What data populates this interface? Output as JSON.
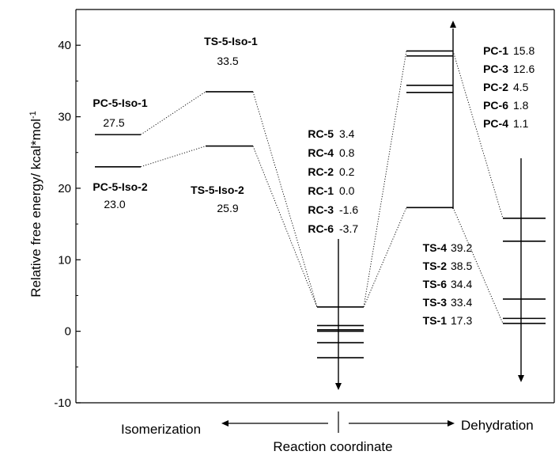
{
  "chart_data": {
    "type": "energy-level-diagram",
    "ylabel": "Relative free energy/ kcal*mol",
    "ylabel_superscript": "-1",
    "xlabel": "Reaction coordinate",
    "left_direction_label": "Isomerization",
    "right_direction_label": "Dehydration",
    "ylim": [
      -10,
      45
    ],
    "yticks": [
      "-10",
      "0",
      "10",
      "20",
      "30",
      "40"
    ],
    "ytick_values": [
      -10,
      0,
      10,
      20,
      30,
      40
    ],
    "levels": {
      "PC-5-Iso-1": 27.5,
      "PC-5-Iso-2": 23.0,
      "TS-5-Iso-1": 33.5,
      "TS-5-Iso-2": 25.9,
      "RC-5": 3.4,
      "RC-4": 0.8,
      "RC-2": 0.2,
      "RC-1": 0.0,
      "RC-3": -1.6,
      "RC-6": -3.7,
      "TS-4": 39.2,
      "TS-2": 38.5,
      "TS-6": 34.4,
      "TS-3": 33.4,
      "TS-1": 17.3,
      "PC-1": 15.8,
      "PC-3": 12.6,
      "PC-2": 4.5,
      "PC-6": 1.8,
      "PC-4": 1.1
    },
    "groups": {
      "isomerization_products": [
        {
          "name": "PC-5-Iso-1",
          "value_text": "27.5"
        },
        {
          "name": "PC-5-Iso-2",
          "value_text": "23.0"
        }
      ],
      "isomerization_ts": [
        {
          "name": "TS-5-Iso-1",
          "value_text": "33.5"
        },
        {
          "name": "TS-5-Iso-2",
          "value_text": "25.9"
        }
      ],
      "reactant_complexes": [
        {
          "name": "RC-5",
          "value_text": "3.4"
        },
        {
          "name": "RC-4",
          "value_text": "0.8"
        },
        {
          "name": "RC-2",
          "value_text": "0.2"
        },
        {
          "name": "RC-1",
          "value_text": "0.0"
        },
        {
          "name": "RC-3",
          "value_text": "-1.6"
        },
        {
          "name": "RC-6",
          "value_text": "-3.7"
        }
      ],
      "dehydration_ts": [
        {
          "name": "TS-4",
          "value_text": "39.2"
        },
        {
          "name": "TS-2",
          "value_text": "38.5"
        },
        {
          "name": "TS-6",
          "value_text": "34.4"
        },
        {
          "name": "TS-3",
          "value_text": "33.4"
        },
        {
          "name": "TS-1",
          "value_text": "17.3"
        }
      ],
      "dehydration_products": [
        {
          "name": "PC-1",
          "value_text": "15.8"
        },
        {
          "name": "PC-3",
          "value_text": "12.6"
        },
        {
          "name": "PC-2",
          "value_text": "4.5"
        },
        {
          "name": "PC-6",
          "value_text": "1.8"
        },
        {
          "name": "PC-4",
          "value_text": "1.1"
        }
      ]
    },
    "connections": [
      [
        "PC-5-Iso-1",
        "TS-5-Iso-1"
      ],
      [
        "TS-5-Iso-1",
        "RC-5"
      ],
      [
        "PC-5-Iso-2",
        "TS-5-Iso-2"
      ],
      [
        "TS-5-Iso-2",
        "RC-5"
      ],
      [
        "RC-5",
        "TS-4"
      ],
      [
        "RC-5",
        "TS-1"
      ],
      [
        "TS-4",
        "PC-1"
      ],
      [
        "TS-1",
        "PC-4"
      ]
    ],
    "line_color": "#000000"
  }
}
